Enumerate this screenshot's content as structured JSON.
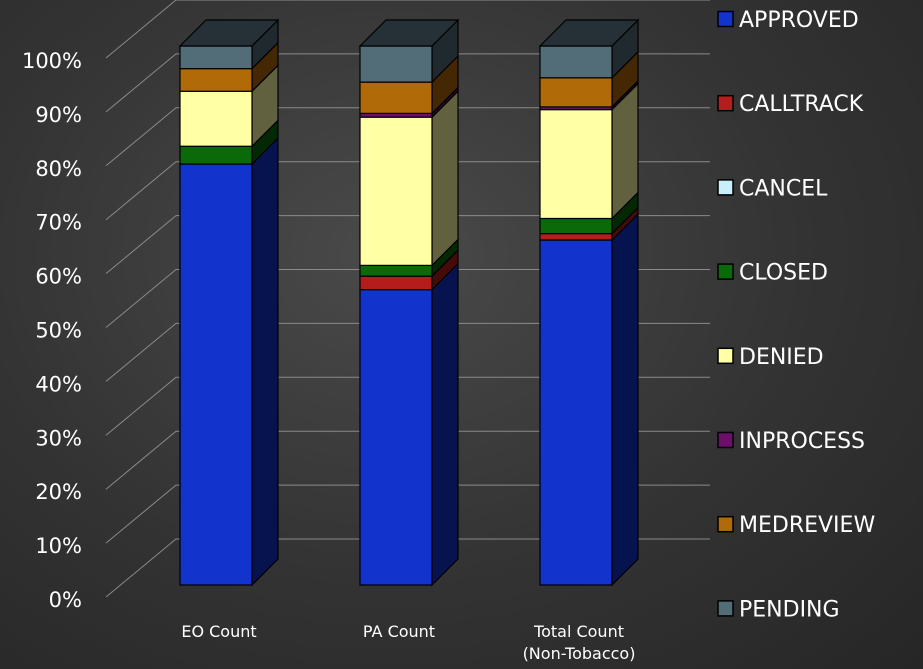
{
  "chart_data": {
    "type": "bar",
    "stacked": true,
    "percent": true,
    "three_d": true,
    "title": "",
    "xlabel": "",
    "ylabel": "",
    "ylim": [
      0,
      100
    ],
    "yticks": [
      "0%",
      "10%",
      "20%",
      "30%",
      "40%",
      "50%",
      "60%",
      "70%",
      "80%",
      "90%",
      "100%"
    ],
    "categories": [
      [
        "EO Count"
      ],
      [
        "PA Count"
      ],
      [
        "Total Count",
        "(Non-Tobacco)"
      ]
    ],
    "series": [
      {
        "name": "APPROVED",
        "color": "#1233cc",
        "values": [
          78.1,
          54.8,
          64.0
        ]
      },
      {
        "name": "CALLTRACK",
        "color": "#b51d1d",
        "values": [
          0.0,
          2.5,
          1.2
        ]
      },
      {
        "name": "CANCEL",
        "color": "#c9eefc",
        "values": [
          0.0,
          0.0,
          0.0
        ]
      },
      {
        "name": "CLOSED",
        "color": "#0a6a0a",
        "values": [
          3.3,
          2.0,
          2.8
        ]
      },
      {
        "name": "DENIED",
        "color": "#ffffa6",
        "values": [
          10.2,
          27.5,
          20.2
        ]
      },
      {
        "name": "INPROCESS",
        "color": "#6b0f6b",
        "values": [
          0.0,
          0.7,
          0.5
        ]
      },
      {
        "name": "MEDREVIEW",
        "color": "#b06a08",
        "values": [
          4.2,
          5.8,
          5.4
        ]
      },
      {
        "name": "PENDING",
        "color": "#526d78",
        "values": [
          4.2,
          6.7,
          5.9
        ]
      }
    ],
    "grid": true,
    "legend_position": "right"
  }
}
